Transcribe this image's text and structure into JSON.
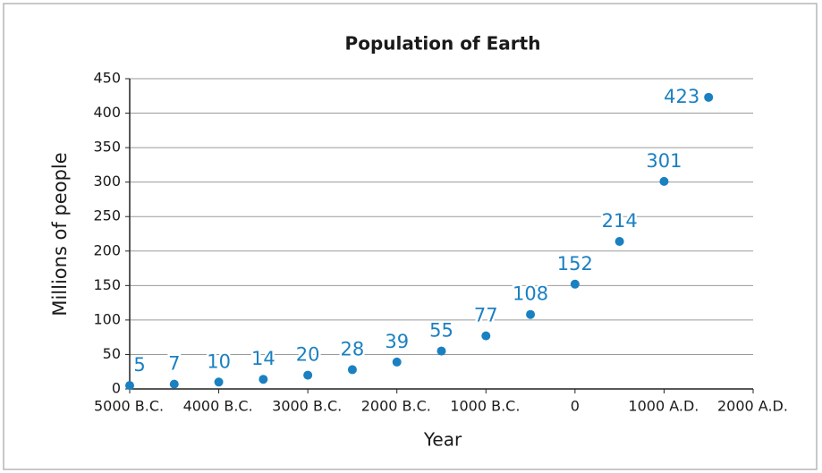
{
  "chart_data": {
    "type": "scatter",
    "title": "Population of Earth",
    "x_label": "Year",
    "y_label": "Millions of people",
    "x": [
      -5000,
      -4500,
      -4000,
      -3500,
      -3000,
      -2500,
      -2000,
      -1500,
      -1000,
      -500,
      0,
      500,
      1000,
      1500
    ],
    "values": [
      5,
      7,
      10,
      14,
      20,
      28,
      39,
      55,
      77,
      108,
      152,
      214,
      301,
      423
    ],
    "color": "#1a80c2",
    "xlim": [
      -5000,
      2000
    ],
    "xticks": [
      {
        "value": -5000,
        "label": "5000 B.C."
      },
      {
        "value": -4000,
        "label": "4000 B.C."
      },
      {
        "value": -3000,
        "label": "3000 B.C."
      },
      {
        "value": -2000,
        "label": "2000 B.C."
      },
      {
        "value": -1000,
        "label": "1000 B.C."
      },
      0,
      {
        "value": 1000,
        "label": "1000 A.D."
      },
      {
        "value": 2000,
        "label": "2000 A.D."
      }
    ],
    "ylim": [
      0,
      450
    ],
    "yticks": [
      0,
      50,
      100,
      150,
      200,
      250,
      300,
      350,
      400,
      450
    ],
    "grid": true
  }
}
